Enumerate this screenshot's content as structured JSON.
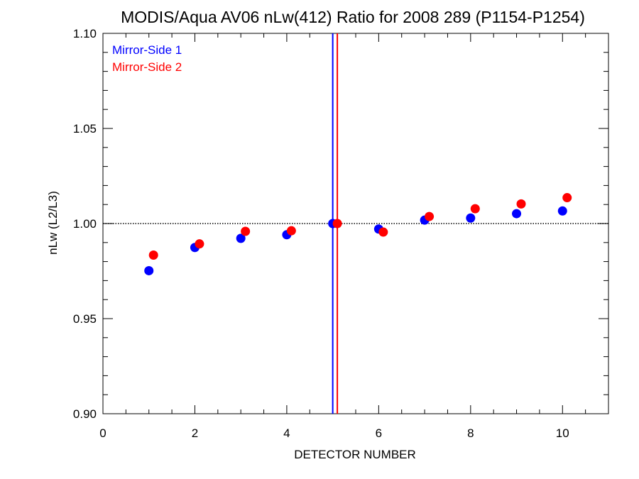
{
  "chart_data": {
    "type": "scatter",
    "title": "MODIS/Aqua AV06 nLw(412) Ratio for 2008 289 (P1154-P1254)",
    "xlabel": "DETECTOR NUMBER",
    "ylabel": "nLw (L2/L3)",
    "xlim": [
      0,
      11
    ],
    "ylim": [
      0.9,
      1.1
    ],
    "x_ticks": [
      "0",
      "2",
      "4",
      "6",
      "8",
      "10"
    ],
    "x_tick_values": [
      0,
      2,
      4,
      6,
      8,
      10
    ],
    "y_ticks": [
      "0.90",
      "0.95",
      "1.00",
      "1.05",
      "1.10"
    ],
    "y_tick_values": [
      0.9,
      0.95,
      1.0,
      1.05,
      1.1
    ],
    "reference_line": {
      "y": 1.0,
      "style": "dotted"
    },
    "series": [
      {
        "name": "Mirror-Side 1",
        "color": "#0000ff",
        "x": [
          1,
          2,
          3,
          4,
          5,
          6,
          7,
          8,
          9,
          10
        ],
        "y": [
          0.9752,
          0.9874,
          0.9922,
          0.9941,
          1.0,
          0.9971,
          1.0018,
          1.0029,
          1.0052,
          1.0066
        ],
        "marker_line_x": 5.0
      },
      {
        "name": "Mirror-Side 2",
        "color": "#ff0000",
        "x": [
          1.1,
          2.1,
          3.1,
          4.1,
          5.1,
          6.1,
          7.1,
          8.1,
          9.1,
          10.1
        ],
        "y": [
          0.9834,
          0.9893,
          0.9959,
          0.9962,
          1.0,
          0.9955,
          1.0037,
          1.0078,
          1.0103,
          1.0136
        ],
        "marker_line_x": 5.1
      }
    ],
    "legend_position": "top-left",
    "grid": false
  }
}
